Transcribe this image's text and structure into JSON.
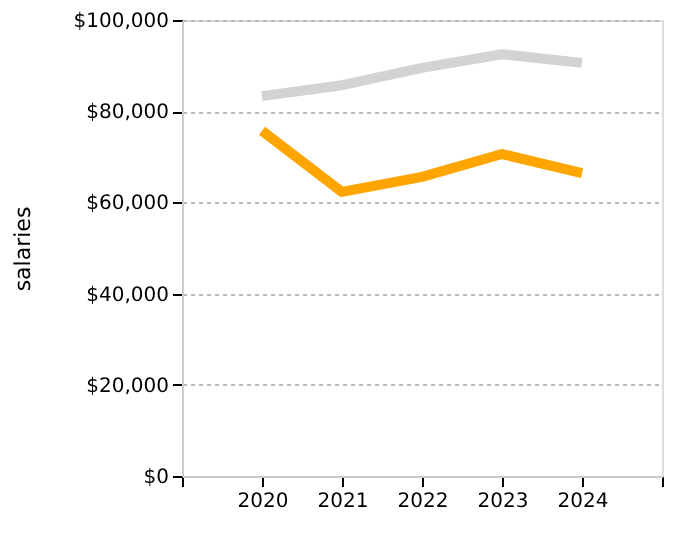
{
  "chart_data": {
    "type": "line",
    "ylabel": "salaries",
    "x": [
      2020,
      2021,
      2022,
      2023,
      2024
    ],
    "series": [
      {
        "color": "#d3d3d3",
        "values": [
          83300,
          85700,
          89500,
          92500,
          90600
        ]
      },
      {
        "color": "#ffa500",
        "values": [
          75700,
          62300,
          65600,
          70600,
          66400
        ]
      }
    ],
    "xlim": [
      2019,
      2025
    ],
    "xticks": [
      {
        "value": 2019,
        "label": null
      },
      2020,
      2021,
      2022,
      2023,
      2024,
      {
        "value": 2025,
        "label": null
      }
    ],
    "ylim": [
      0,
      100000
    ],
    "yticks": [
      {
        "value": 0,
        "label": "$0"
      },
      {
        "value": 20000,
        "label": "$20,000"
      },
      {
        "value": 40000,
        "label": "$40,000"
      },
      {
        "value": 60000,
        "label": "$60,000"
      },
      {
        "value": 80000,
        "label": "$80,000"
      },
      {
        "value": 100000,
        "label": "$100,000"
      }
    ],
    "grid": "y",
    "marker": "none",
    "line_style": "solid"
  }
}
